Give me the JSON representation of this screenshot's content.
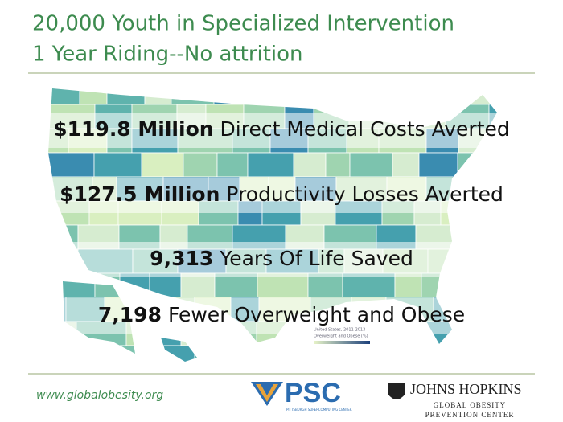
{
  "header": {
    "title_lines": [
      "20,000 Youth in Specialized Intervention",
      "1 Year Riding--No attrition"
    ]
  },
  "highlights": [
    {
      "figure": "$119.8 Million",
      "text": "Direct Medical Costs Averted"
    },
    {
      "figure": "$127.5 Million",
      "text": "Productivity Losses Averted"
    },
    {
      "figure": "9,313",
      "text": "Years Of Life Saved"
    },
    {
      "figure": "7,198",
      "text": "Fewer Overweight and Obese"
    }
  ],
  "map_legend": {
    "title": "United States, 2011-2013",
    "subtitle": "Overweight and Obese (%)"
  },
  "footer": {
    "url": "www.globalobesity.org",
    "logos": [
      {
        "name": "PSC",
        "subtitle": "PITTSBURGH SUPERCOMPUTING CENTER"
      },
      {
        "name": "JOHNS HOPKINS",
        "subtitle_lines": [
          "GLOBAL OBESITY",
          "PREVENTION CENTER"
        ]
      }
    ]
  }
}
